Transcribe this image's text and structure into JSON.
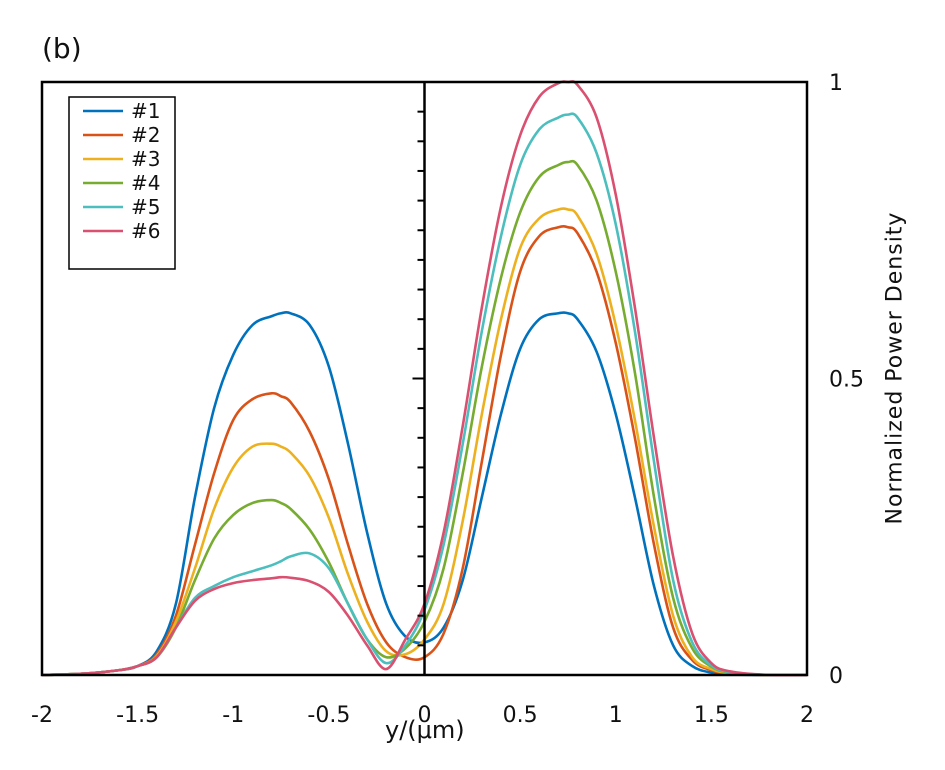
{
  "panel_label": "(b)",
  "chart_data": {
    "type": "line",
    "title": "",
    "xlabel": "y/(μm)",
    "ylabel": "Normalized Power Density",
    "xlim": [
      -2,
      2
    ],
    "ylim": [
      0,
      1
    ],
    "x_ticks": [
      -2,
      -1.5,
      -1,
      -0.5,
      0,
      0.5,
      1,
      1.5,
      2
    ],
    "x_tick_labels": [
      "-2",
      "-1.5",
      "-1",
      "-0.5",
      "0",
      "0.5",
      "1",
      "1.5",
      "2"
    ],
    "y_ticks": [
      0,
      0.5,
      1
    ],
    "y_tick_labels": [
      "0",
      "0.5",
      "1"
    ],
    "y_axis_side": "right",
    "grid": false,
    "legend_position": "top-left",
    "x": [
      -2.0,
      -1.8,
      -1.6,
      -1.5,
      -1.4,
      -1.3,
      -1.2,
      -1.1,
      -1.0,
      -0.9,
      -0.8,
      -0.75,
      -0.7,
      -0.6,
      -0.5,
      -0.4,
      -0.3,
      -0.2,
      -0.1,
      0.0,
      0.1,
      0.2,
      0.3,
      0.4,
      0.5,
      0.6,
      0.7,
      0.75,
      0.8,
      0.9,
      1.0,
      1.1,
      1.2,
      1.3,
      1.4,
      1.5,
      1.6,
      1.8,
      2.0
    ],
    "series": [
      {
        "name": "#1",
        "color": "#0072BD",
        "values": [
          0.0,
          0.002,
          0.008,
          0.015,
          0.04,
          0.12,
          0.3,
          0.45,
          0.54,
          0.59,
          0.605,
          0.61,
          0.61,
          0.59,
          0.52,
          0.39,
          0.24,
          0.12,
          0.065,
          0.055,
          0.08,
          0.16,
          0.3,
          0.44,
          0.55,
          0.6,
          0.61,
          0.61,
          0.6,
          0.545,
          0.44,
          0.3,
          0.15,
          0.05,
          0.015,
          0.004,
          0.001,
          0.0,
          0.0
        ]
      },
      {
        "name": "#2",
        "color": "#D95319",
        "values": [
          0.0,
          0.002,
          0.008,
          0.015,
          0.035,
          0.1,
          0.22,
          0.34,
          0.43,
          0.465,
          0.475,
          0.47,
          0.46,
          0.41,
          0.33,
          0.22,
          0.12,
          0.055,
          0.03,
          0.03,
          0.07,
          0.18,
          0.36,
          0.54,
          0.68,
          0.74,
          0.755,
          0.755,
          0.745,
          0.68,
          0.56,
          0.4,
          0.22,
          0.08,
          0.025,
          0.008,
          0.002,
          0.0,
          0.0
        ]
      },
      {
        "name": "#3",
        "color": "#EDB120",
        "values": [
          0.0,
          0.002,
          0.008,
          0.015,
          0.032,
          0.09,
          0.18,
          0.28,
          0.35,
          0.385,
          0.39,
          0.385,
          0.375,
          0.335,
          0.265,
          0.17,
          0.09,
          0.04,
          0.035,
          0.06,
          0.12,
          0.26,
          0.44,
          0.6,
          0.72,
          0.77,
          0.785,
          0.785,
          0.775,
          0.71,
          0.59,
          0.43,
          0.25,
          0.1,
          0.03,
          0.01,
          0.003,
          0.0,
          0.0
        ]
      },
      {
        "name": "#4",
        "color": "#77AC30",
        "values": [
          0.0,
          0.002,
          0.008,
          0.015,
          0.03,
          0.08,
          0.16,
          0.23,
          0.27,
          0.29,
          0.295,
          0.29,
          0.28,
          0.245,
          0.19,
          0.12,
          0.06,
          0.03,
          0.045,
          0.09,
          0.18,
          0.34,
          0.52,
          0.67,
          0.78,
          0.84,
          0.86,
          0.865,
          0.86,
          0.8,
          0.68,
          0.51,
          0.3,
          0.13,
          0.045,
          0.014,
          0.004,
          0.0,
          0.0
        ]
      },
      {
        "name": "#5",
        "color": "#4DBEBE",
        "values": [
          0.0,
          0.002,
          0.008,
          0.015,
          0.03,
          0.08,
          0.13,
          0.15,
          0.165,
          0.175,
          0.185,
          0.192,
          0.2,
          0.205,
          0.18,
          0.12,
          0.06,
          0.02,
          0.05,
          0.11,
          0.22,
          0.39,
          0.58,
          0.74,
          0.86,
          0.92,
          0.94,
          0.945,
          0.94,
          0.88,
          0.76,
          0.58,
          0.36,
          0.16,
          0.055,
          0.016,
          0.005,
          0.0,
          0.0
        ]
      },
      {
        "name": "#6",
        "color": "#D95070",
        "values": [
          0.0,
          0.002,
          0.008,
          0.015,
          0.03,
          0.08,
          0.125,
          0.145,
          0.155,
          0.16,
          0.163,
          0.165,
          0.164,
          0.158,
          0.14,
          0.1,
          0.05,
          0.01,
          0.06,
          0.12,
          0.24,
          0.42,
          0.62,
          0.79,
          0.91,
          0.975,
          0.998,
          1.0,
          0.995,
          0.94,
          0.81,
          0.62,
          0.4,
          0.2,
          0.07,
          0.02,
          0.006,
          0.0,
          0.0
        ]
      }
    ]
  }
}
